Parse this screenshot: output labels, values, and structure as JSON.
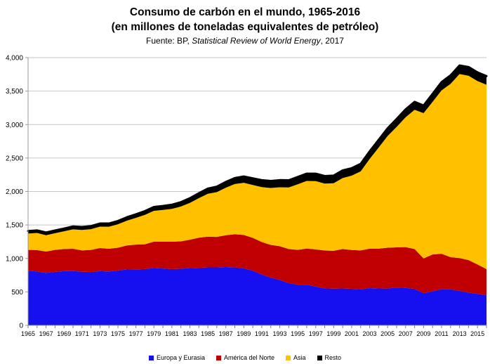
{
  "header": {
    "title": "Consumo de carbón en el mundo, 1965-2016",
    "subtitle": "(en millones de toneladas equivalentes de petróleo)",
    "source_prefix": "Fuente: BP, ",
    "source_italic": "Statistical Review of World Energy",
    "source_suffix": ", 2017"
  },
  "chart_data": {
    "type": "area",
    "stacked": true,
    "title": "Consumo de carbón en el mundo, 1965-2016",
    "subtitle": "(en millones de toneladas equivalentes de petróleo)",
    "units": "millones de toneladas equivalentes de petróleo",
    "xlabel": "",
    "ylabel": "",
    "ylim": [
      0,
      4000
    ],
    "ytick_step": 500,
    "ytick_labels": [
      "0",
      "500",
      "1,000",
      "1,500",
      "2,000",
      "2,500",
      "3,000",
      "3,500",
      "4,000"
    ],
    "grid": true,
    "legend_position": "bottom",
    "x": [
      1965,
      1966,
      1967,
      1968,
      1969,
      1970,
      1971,
      1972,
      1973,
      1974,
      1975,
      1976,
      1977,
      1978,
      1979,
      1980,
      1981,
      1982,
      1983,
      1984,
      1985,
      1986,
      1987,
      1988,
      1989,
      1990,
      1991,
      1992,
      1993,
      1994,
      1995,
      1996,
      1997,
      1998,
      1999,
      2000,
      2001,
      2002,
      2003,
      2004,
      2005,
      2006,
      2007,
      2008,
      2009,
      2010,
      2011,
      2012,
      2013,
      2014,
      2015,
      2016
    ],
    "x_tick_labels": [
      "1965",
      "1967",
      "1969",
      "1971",
      "1973",
      "1975",
      "1977",
      "1979",
      "1981",
      "1983",
      "1985",
      "1987",
      "1989",
      "1991",
      "1993",
      "1995",
      "1997",
      "1999",
      "2001",
      "2003",
      "2005",
      "2007",
      "2009",
      "2011",
      "2013",
      "2015"
    ],
    "series": [
      {
        "name": "Europa y Eurasia",
        "color": "#1610F0",
        "values": [
          817,
          805,
          784,
          799,
          810,
          812,
          800,
          797,
          810,
          804,
          820,
          834,
          836,
          841,
          856,
          849,
          840,
          845,
          855,
          860,
          866,
          866,
          872,
          866,
          850,
          817,
          760,
          712,
          678,
          630,
          608,
          607,
          580,
          553,
          549,
          551,
          546,
          540,
          556,
          551,
          550,
          565,
          559,
          545,
          480,
          509,
          540,
          538,
          515,
          490,
          470,
          450
        ]
      },
      {
        "name": "América del Norte",
        "color": "#C00000",
        "values": [
          310,
          320,
          318,
          328,
          330,
          332,
          320,
          330,
          345,
          340,
          340,
          360,
          370,
          370,
          395,
          400,
          410,
          410,
          425,
          450,
          460,
          455,
          475,
          495,
          500,
          490,
          485,
          490,
          505,
          510,
          520,
          540,
          555,
          565,
          565,
          590,
          580,
          580,
          590,
          595,
          610,
          600,
          610,
          595,
          520,
          550,
          530,
          480,
          490,
          485,
          440,
          390
        ]
      },
      {
        "name": "Asia",
        "color": "#FFC000",
        "values": [
          245,
          255,
          245,
          250,
          265,
          290,
          305,
          310,
          320,
          330,
          350,
          370,
          400,
          440,
          460,
          475,
          490,
          520,
          550,
          590,
          640,
          670,
          710,
          750,
          780,
          790,
          820,
          850,
          880,
          920,
          980,
          1010,
          1020,
          1000,
          1010,
          1060,
          1110,
          1180,
          1340,
          1510,
          1670,
          1800,
          1940,
          2080,
          2170,
          2280,
          2440,
          2590,
          2750,
          2755,
          2740,
          2754
        ]
      },
      {
        "name": "Resto",
        "color": "#000000",
        "values": [
          38,
          39,
          40,
          41,
          42,
          44,
          45,
          46,
          47,
          48,
          50,
          52,
          54,
          56,
          58,
          60,
          63,
          66,
          70,
          74,
          78,
          82,
          86,
          90,
          95,
          100,
          105,
          106,
          107,
          108,
          109,
          110,
          112,
          113,
          114,
          115,
          112,
          113,
          114,
          115,
          115,
          118,
          118,
          120,
          115,
          120,
          125,
          127,
          128,
          130,
          130,
          130
        ]
      }
    ]
  },
  "colors": {
    "background": "#FFFFFF",
    "gridline": "#C6C6C6",
    "axis": "#9A9A9A",
    "tick": "#808080",
    "text": "#000000"
  }
}
